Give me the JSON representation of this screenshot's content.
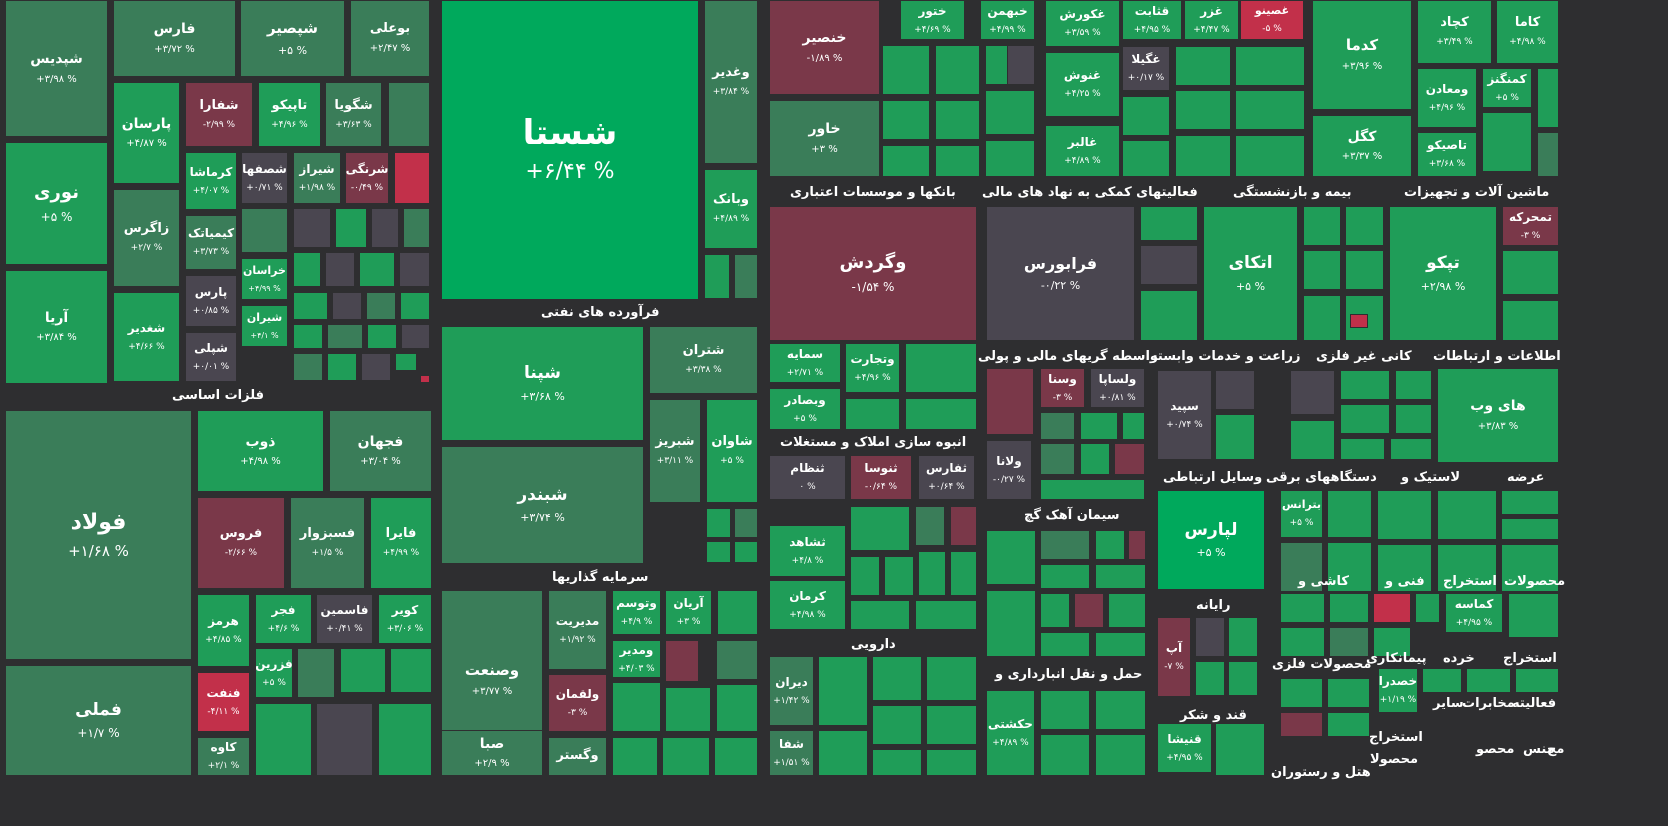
{
  "colors": {
    "up5": "#00a95c",
    "up": "#1f9d58",
    "mid": "#3a7d59",
    "flat": "#4a4650",
    "down": "#7a3849",
    "down2": "#c2304a"
  },
  "sections": [
    {
      "label": "فلزات اساسی",
      "symbols": [
        {
          "sym": "شپدیس",
          "chg": "+۳/۹۸ %"
        },
        {
          "sym": "فارس",
          "chg": "+۳/۷۲ %"
        },
        {
          "sym": "شپصیر",
          "chg": "+۵ %"
        },
        {
          "sym": "بوعلی",
          "chg": "+۲/۴۷ %"
        },
        {
          "sym": "پارسان",
          "chg": "+۴/۸۷ %"
        },
        {
          "sym": "شفارا",
          "chg": "-۲/۹۹ %"
        },
        {
          "sym": "تاپیکو",
          "chg": "+۴/۹۶ %"
        },
        {
          "sym": "شگویا",
          "chg": "+۳/۶۳ %"
        },
        {
          "sym": "نوری",
          "chg": "+۵ %"
        },
        {
          "sym": "کرماشا",
          "chg": "+۴/۰۷ %"
        },
        {
          "sym": "شصفها",
          "chg": "+۰/۷۱ %"
        },
        {
          "sym": "شیراز",
          "chg": "+۱/۹۸ %"
        },
        {
          "sym": "شرنگی",
          "chg": "-۰/۴۹ %"
        },
        {
          "sym": "زاگرس",
          "chg": "+۲/۷ %"
        },
        {
          "sym": "کیمیاتک",
          "chg": "+۳/۷۳ %"
        },
        {
          "sym": "خراسان",
          "chg": "+۴/۹۹ %"
        },
        {
          "sym": "آریا",
          "chg": "+۳/۸۴ %"
        },
        {
          "sym": "شغدیر",
          "chg": "+۴/۶۶ %"
        },
        {
          "sym": "پارس",
          "chg": "+۰/۸۵ %"
        },
        {
          "sym": "شیران",
          "chg": "+۴/۱ %"
        },
        {
          "sym": "شپلی",
          "chg": "+۰/۰۱ %"
        },
        {
          "sym": "فولاد",
          "chg": "+۱/۶۸ %"
        },
        {
          "sym": "ذوب",
          "chg": "+۴/۹۸ %"
        },
        {
          "sym": "فجهان",
          "chg": "+۳/۰۴ %"
        },
        {
          "sym": "فروس",
          "chg": "-۲/۶۶ %"
        },
        {
          "sym": "فسبزوار",
          "chg": "+۱/۵ %"
        },
        {
          "sym": "فایرا",
          "chg": "+۴/۹۹ %"
        },
        {
          "sym": "هرمز",
          "chg": "+۴/۸۵ %"
        },
        {
          "sym": "فجر",
          "chg": "+۴/۶ %"
        },
        {
          "sym": "فاسمین",
          "chg": "+۰/۴۱ %"
        },
        {
          "sym": "کویر",
          "chg": "+۳/۰۶ %"
        },
        {
          "sym": "فزرین",
          "chg": "+۵ %"
        },
        {
          "sym": "فنفت",
          "chg": "-۴/۱۱ %"
        },
        {
          "sym": "فملی",
          "chg": "+۱/۷ %"
        },
        {
          "sym": "کاوه",
          "chg": "+۲/۱ %"
        }
      ]
    },
    {
      "label": "فرآورده های نفتی",
      "symbols": [
        {
          "sym": "شستا",
          "chg": "+۶/۴۴ %"
        },
        {
          "sym": "وغدیر",
          "chg": "+۳/۸۴ %"
        },
        {
          "sym": "وبانک",
          "chg": "+۴/۸۹ %"
        }
      ]
    },
    {
      "label": "سرمایه گذاریها",
      "symbols": [
        {
          "sym": "شپنا",
          "chg": "+۳/۶۸ %"
        },
        {
          "sym": "شتران",
          "chg": "+۳/۳۸ %"
        },
        {
          "sym": "شبریز",
          "chg": "+۳/۱۱ %"
        },
        {
          "sym": "شاوان",
          "chg": "+۵ %"
        },
        {
          "sym": "شبندر",
          "chg": "+۳/۷۴ %"
        },
        {
          "sym": "وصنعت",
          "chg": "+۳/۷۷ %"
        },
        {
          "sym": "مدیریت",
          "chg": "+۱/۹۲ %"
        },
        {
          "sym": "وتوسم",
          "chg": "+۴/۹ %"
        },
        {
          "sym": "آریان",
          "chg": "+۳ %"
        },
        {
          "sym": "ومدیر",
          "chg": "+۴/۰۳ %"
        },
        {
          "sym": "ولقمان",
          "chg": "-۳ %"
        },
        {
          "sym": "صبا",
          "chg": "+۲/۹ %"
        },
        {
          "sym": "وگستر",
          "chg": ""
        }
      ]
    },
    {
      "label": "بانکها و موسسات اعتباری",
      "symbols": [
        {
          "sym": "خنصیر",
          "chg": "-۱/۸۹ %"
        },
        {
          "sym": "خاور",
          "chg": "+۳ %"
        },
        {
          "sym": "ختور",
          "chg": "+۴/۶۹ %"
        },
        {
          "sym": "خبهمن",
          "chg": "+۴/۹۹ %"
        }
      ]
    },
    {
      "label": "فعالیتهای کمکی به نهاد های مالی",
      "symbols": [
        {
          "sym": "غکورش",
          "chg": "+۳/۵۹ %"
        },
        {
          "sym": "غگیلا",
          "chg": "+۰/۱۷ %"
        },
        {
          "sym": "غنوش",
          "chg": "+۴/۲۵ %"
        },
        {
          "sym": "غالبر",
          "chg": "+۴/۸۹ %"
        }
      ]
    },
    {
      "label": "بیمه و بازنشستگی",
      "symbols": [
        {
          "sym": "قثابت",
          "chg": "+۴/۹۵ %"
        },
        {
          "sym": "غزر",
          "chg": "+۴/۴۷ %"
        },
        {
          "sym": "غصینو",
          "chg": "-۵ %"
        },
        {
          "sym": "کدما",
          "chg": "+۳/۹۶ %"
        },
        {
          "sym": "کگل",
          "chg": "+۳/۳۷ %"
        }
      ]
    },
    {
      "label": "ماشین آلات و تجهیزات",
      "symbols": [
        {
          "sym": "کچاد",
          "chg": "+۳/۴۹ %"
        },
        {
          "sym": "کاما",
          "chg": "+۴/۹۸ %"
        },
        {
          "sym": "ومعادن",
          "chg": "+۴/۹۶ %"
        },
        {
          "sym": "کمنگنز",
          "chg": "+۵ %"
        },
        {
          "sym": "تاصیکو",
          "chg": "+۳/۶۸ %"
        }
      ]
    },
    {
      "label": "واسطه گریهای مالی و پولی",
      "symbols": [
        {
          "sym": "وگردش",
          "chg": "-۱/۵۴ %"
        },
        {
          "sym": "سمایه",
          "chg": "+۲/۷۱ %"
        },
        {
          "sym": "وتجارت",
          "chg": "+۴/۹۶ %"
        },
        {
          "sym": "وبصادر",
          "chg": "+۵ %"
        }
      ]
    },
    {
      "label": "زراعت و خدمات وابسته",
      "symbols": [
        {
          "sym": "فرابورس",
          "chg": "-۰/۲۲ %"
        },
        {
          "sym": "وسنا",
          "chg": "-۳ %"
        },
        {
          "sym": "ولساپا",
          "chg": "+۰/۸۱ %"
        },
        {
          "sym": "ولانا",
          "chg": "-۰/۲۷ %"
        }
      ]
    },
    {
      "label": "کانی غیر فلزی",
      "symbols": [
        {
          "sym": "اتکای",
          "chg": "+۵ %"
        }
      ]
    },
    {
      "label": "اطلاعات و ارتباطات",
      "symbols": [
        {
          "sym": "تپکو",
          "chg": "+۲/۹۸ %"
        },
        {
          "sym": "تمحرکه",
          "chg": "-۳ %"
        },
        {
          "sym": "های وب",
          "chg": "+۳/۸۳ %"
        }
      ]
    },
    {
      "label": "انبوه سازی املاک و مستغلات",
      "symbols": [
        {
          "sym": "ثنظام",
          "chg": "۰ %"
        },
        {
          "sym": "ثنوسا",
          "chg": "-۰/۶۴ %"
        },
        {
          "sym": "ثفارس",
          "chg": "+۰/۶۴ %"
        },
        {
          "sym": "ثشاهد",
          "chg": "+۴/۸ %"
        },
        {
          "sym": "کرمان",
          "chg": "+۴/۹۸ %"
        }
      ]
    },
    {
      "label": "سیمان آهک گچ",
      "symbols": [
        {
          "sym": "سپید",
          "chg": "+۰/۷۴ %"
        }
      ]
    },
    {
      "label": "دارویی",
      "symbols": [
        {
          "sym": "دیران",
          "chg": "+۱/۴۲ %"
        },
        {
          "sym": "شفا",
          "chg": "+۱/۵۱ %"
        }
      ]
    },
    {
      "label": "حمل و نقل انبارداری و",
      "symbols": [
        {
          "sym": "حکشتی",
          "chg": "+۴/۸۹ %"
        }
      ]
    },
    {
      "label": "رایانه",
      "symbols": [
        {
          "sym": "لپارس",
          "chg": "+۵ %"
        },
        {
          "sym": "آپ",
          "chg": "-۷ %"
        }
      ]
    },
    {
      "label": "قند و شکر",
      "symbols": [
        {
          "sym": "قنیشا",
          "chg": "+۴/۹۵ %"
        }
      ]
    },
    {
      "label": "وسایل ارتباطی",
      "symbols": []
    },
    {
      "label": "دستگاههای برقی",
      "symbols": [
        {
          "sym": "بترانس",
          "chg": "+۵ %"
        }
      ]
    },
    {
      "label": "لاستیک و",
      "symbols": []
    },
    {
      "label": "عرضه",
      "symbols": []
    },
    {
      "label": "کاشی و",
      "symbols": []
    },
    {
      "label": "فنی و",
      "symbols": [
        {
          "sym": "کماسه",
          "chg": "+۴/۹۵ %"
        }
      ]
    },
    {
      "label": "استخراج",
      "symbols": []
    },
    {
      "label": "محصولات",
      "symbols": []
    },
    {
      "label": "محصولات فلزی",
      "symbols": []
    },
    {
      "label": "پیمانکاری",
      "symbols": []
    },
    {
      "label": "خرده",
      "symbols": []
    },
    {
      "label": "استخراج",
      "symbols": [
        {
          "sym": "خصدرا",
          "chg": "+۱/۱۹ %"
        }
      ]
    },
    {
      "label": "سایر",
      "symbols": []
    },
    {
      "label": "مخابرات",
      "symbols": []
    },
    {
      "label": "فعالیته",
      "symbols": []
    },
    {
      "label": "استخراج",
      "symbols": []
    },
    {
      "label": "هتل و رستوران",
      "symbols": []
    },
    {
      "label": "محصولا",
      "symbols": []
    },
    {
      "label": "محصو",
      "symbols": []
    },
    {
      "label": "منس",
      "symbols": []
    },
    {
      "label": "مح",
      "symbols": []
    }
  ],
  "chart_data": {
    "type": "heatmap",
    "title": "",
    "values_unit": "percent change",
    "labeled_tiles": [
      {
        "sector": "فلزات اساسی",
        "symbol": "فولاد",
        "change": 1.68
      },
      {
        "sector": "فلزات اساسی",
        "symbol": "فملی",
        "change": 1.7
      },
      {
        "sector": "فلزات اساسی",
        "symbol": "نوری",
        "change": 5
      },
      {
        "sector": "فرآورده های نفتی",
        "symbol": "شستا",
        "change": 6.44
      },
      {
        "sector": "سرمایه گذاریها",
        "symbol": "شپنا",
        "change": 3.68
      },
      {
        "sector": "سرمایه گذاریها",
        "symbol": "شبندر",
        "change": 3.74
      },
      {
        "sector": "واسطه گریهای مالی و پولی",
        "symbol": "وگردش",
        "change": -1.54
      },
      {
        "sector": "زراعت و خدمات وابسته",
        "symbol": "فرابورس",
        "change": -0.22
      },
      {
        "sector": "کانی غیر فلزی",
        "symbol": "اتکای",
        "change": 5
      },
      {
        "sector": "اطلاعات و ارتباطات",
        "symbol": "تپکو",
        "change": 2.98
      },
      {
        "sector": "رایانه",
        "symbol": "لپارس",
        "change": 5
      },
      {
        "sector": "اطلاعات و ارتباطات",
        "symbol": "تمحرکه",
        "change": -3
      },
      {
        "sector": "فلزات اساسی",
        "symbol": "فنفت",
        "change": -4.11
      },
      {
        "sector": "بیمه و بازنشستگی",
        "symbol": "غصینو",
        "change": -5
      }
    ]
  }
}
